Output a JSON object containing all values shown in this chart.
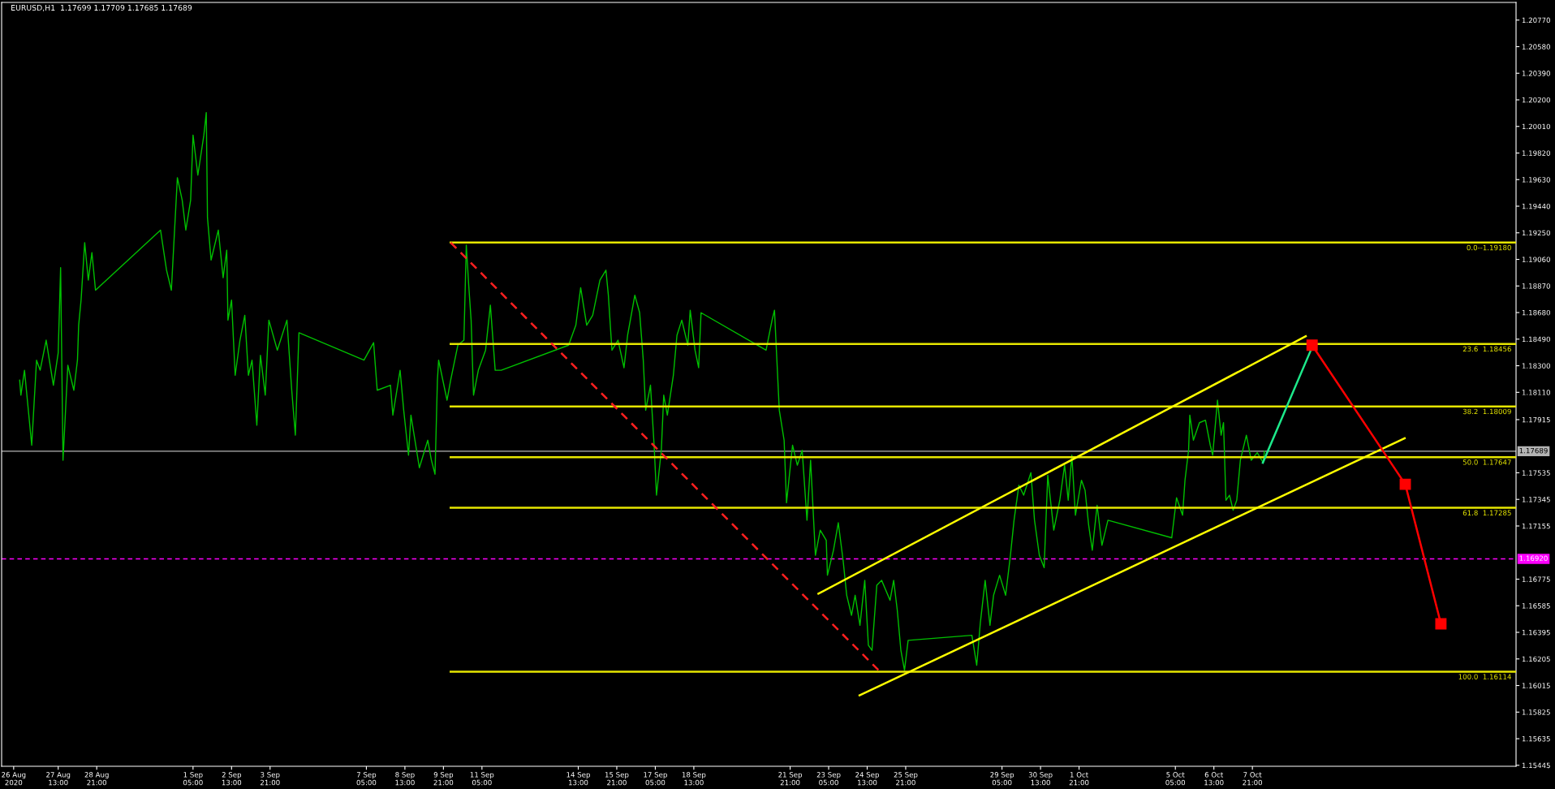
{
  "chart_data": {
    "type": "line",
    "title": "EURUSD,H1  1.17699 1.17709 1.17685 1.17689",
    "xlim": [
      "2020-08-25T14:00",
      "2020-10-17T00:00"
    ],
    "ylim": [
      1.15438,
      1.20896
    ],
    "xticks": [
      {
        "value": "2020-08-26",
        "label": "26 Aug 2020"
      },
      {
        "value": "2020-08-27T13:00",
        "label": "27 Aug 13:00"
      },
      {
        "value": "2020-08-28T21:00",
        "label": "28 Aug 21:00"
      },
      {
        "value": "2020-09-01T05:00",
        "label": "1 Sep 05:00"
      },
      {
        "value": "2020-09-02T13:00",
        "label": "2 Sep 13:00"
      },
      {
        "value": "2020-09-03T21:00",
        "label": "3 Sep 21:00"
      },
      {
        "value": "2020-09-07T05:00",
        "label": "7 Sep 05:00"
      },
      {
        "value": "2020-09-08T13:00",
        "label": "8 Sep 13:00"
      },
      {
        "value": "2020-09-09T21:00",
        "label": "9 Sep 21:00"
      },
      {
        "value": "2020-09-11T05:00",
        "label": "11 Sep 05:00"
      },
      {
        "value": "2020-09-14T13:00",
        "label": "14 Sep 13:00"
      },
      {
        "value": "2020-09-15T21:00",
        "label": "15 Sep 21:00"
      },
      {
        "value": "2020-09-17T05:00",
        "label": "17 Sep 05:00"
      },
      {
        "value": "2020-09-18T13:00",
        "label": "18 Sep 13:00"
      },
      {
        "value": "2020-09-21T21:00",
        "label": "21 Sep 21:00"
      },
      {
        "value": "2020-09-23T05:00",
        "label": "23 Sep 05:00"
      },
      {
        "value": "2020-09-24T13:00",
        "label": "24 Sep 13:00"
      },
      {
        "value": "2020-09-25T21:00",
        "label": "25 Sep 21:00"
      },
      {
        "value": "2020-09-29T05:00",
        "label": "29 Sep 05:00"
      },
      {
        "value": "2020-09-30T13:00",
        "label": "30 Sep 13:00"
      },
      {
        "value": "2020-10-01T21:00",
        "label": "1 Oct 21:00"
      },
      {
        "value": "2020-10-05T05:00",
        "label": "5 Oct 05:00"
      },
      {
        "value": "2020-10-06T13:00",
        "label": "6 Oct 13:00"
      },
      {
        "value": "2020-10-07T21:00",
        "label": "7 Oct 21:00"
      }
    ],
    "yticks": [
      {
        "value": 1.2077,
        "label": "1.20770"
      },
      {
        "value": 1.2058,
        "label": "1.20580"
      },
      {
        "value": 1.2039,
        "label": "1.20390"
      },
      {
        "value": 1.202,
        "label": "1.20200"
      },
      {
        "value": 1.2001,
        "label": "1.20010"
      },
      {
        "value": 1.1982,
        "label": "1.19820"
      },
      {
        "value": 1.1963,
        "label": "1.19630"
      },
      {
        "value": 1.1944,
        "label": "1.19440"
      },
      {
        "value": 1.1925,
        "label": "1.19250"
      },
      {
        "value": 1.1906,
        "label": "1.19060"
      },
      {
        "value": 1.1887,
        "label": "1.18870"
      },
      {
        "value": 1.1868,
        "label": "1.18680"
      },
      {
        "value": 1.1849,
        "label": "1.18490"
      },
      {
        "value": 1.183,
        "label": "1.18300"
      },
      {
        "value": 1.1811,
        "label": "1.18110"
      },
      {
        "value": 1.17915,
        "label": "1.17915"
      },
      {
        "value": 1.17535,
        "label": "1.17535"
      },
      {
        "value": 1.17345,
        "label": "1.17345"
      },
      {
        "value": 1.17155,
        "label": "1.17155"
      },
      {
        "value": 1.16775,
        "label": "1.16775"
      },
      {
        "value": 1.16585,
        "label": "1.16585"
      },
      {
        "value": 1.16395,
        "label": "1.16395"
      },
      {
        "value": 1.16205,
        "label": "1.16205"
      },
      {
        "value": 1.16015,
        "label": "1.16015"
      },
      {
        "value": 1.15825,
        "label": "1.15825"
      },
      {
        "value": 1.15635,
        "label": "1.15635"
      },
      {
        "value": 1.15445,
        "label": "1.15445"
      }
    ],
    "grid": false,
    "ref_lines": [
      {
        "axis": "y",
        "value": 1.17689,
        "label": "1.17689",
        "color": "#b4b4b4",
        "line_style": "solid"
      },
      {
        "axis": "y",
        "value": 1.1692,
        "label": "1.16920",
        "color": "#ff00ff",
        "line_style": "dashed"
      }
    ],
    "series": [
      {
        "color": "#00c000",
        "line_style": "solid",
        "x": [
          "2020-08-26T05:00",
          "2020-08-26T06:00",
          "2020-08-26T09:00",
          "2020-08-26T15:00",
          "2020-08-26T19:00",
          "2020-08-26T22:00",
          "2020-08-27T03:00",
          "2020-08-27T09:00",
          "2020-08-27T13:00",
          "2020-08-27T15:00",
          "2020-08-27T17:00",
          "2020-08-27T21:00",
          "2020-08-28T02:00",
          "2020-08-28T05:00",
          "2020-08-28T06:00",
          "2020-08-28T08:00",
          "2020-08-28T11:00",
          "2020-08-28T14:00",
          "2020-08-28T17:00",
          "2020-08-28T20:00",
          "2020-08-31T02:00",
          "2020-08-31T07:00",
          "2020-08-31T11:00",
          "2020-08-31T13:00",
          "2020-08-31T16:00",
          "2020-08-31T20:00",
          "2020-08-31T23:00",
          "2020-09-01T03:00",
          "2020-09-01T05:00",
          "2020-09-01T09:00",
          "2020-09-01T14:00",
          "2020-09-01T16:00",
          "2020-09-01T17:00",
          "2020-09-01T20:00",
          "2020-09-02T02:00",
          "2020-09-02T06:00",
          "2020-09-02T09:00",
          "2020-09-02T10:00",
          "2020-09-02T13:00",
          "2020-09-02T16:00",
          "2020-09-02T20:00",
          "2020-09-03T00:00",
          "2020-09-03T03:00",
          "2020-09-03T06:00",
          "2020-09-03T10:00",
          "2020-09-03T13:00",
          "2020-09-03T17:00",
          "2020-09-03T20:00",
          "2020-09-04T03:00",
          "2020-09-04T11:00",
          "2020-09-04T15:00",
          "2020-09-04T18:00",
          "2020-09-04T21:00",
          "2020-09-07T03:00",
          "2020-09-07T11:00",
          "2020-09-07T14:00",
          "2020-09-08T01:00",
          "2020-09-08T03:00",
          "2020-09-08T09:00",
          "2020-09-08T12:00",
          "2020-09-08T16:00",
          "2020-09-08T18:00",
          "2020-09-09T01:00",
          "2020-09-09T08:00",
          "2020-09-09T11:00",
          "2020-09-09T14:00",
          "2020-09-09T16:00",
          "2020-09-09T17:00",
          "2020-09-10T00:00",
          "2020-09-10T03:00",
          "2020-09-10T09:00",
          "2020-09-10T14:00",
          "2020-09-10T16:00",
          "2020-09-10T18:00",
          "2020-09-10T20:00",
          "2020-09-10T22:00",
          "2020-09-11T02:00",
          "2020-09-11T08:00",
          "2020-09-11T12:00",
          "2020-09-11T16:00",
          "2020-09-11T21:00",
          "2020-09-14T05:00",
          "2020-09-14T11:00",
          "2020-09-14T15:00",
          "2020-09-14T20:00",
          "2020-09-15T01:00",
          "2020-09-15T07:00",
          "2020-09-15T12:00",
          "2020-09-15T14:00",
          "2020-09-15T17:00",
          "2020-09-15T22:00",
          "2020-09-16T03:00",
          "2020-09-16T06:00",
          "2020-09-16T12:00",
          "2020-09-16T16:00",
          "2020-09-16T19:00",
          "2020-09-16T21:00",
          "2020-09-17T01:00",
          "2020-09-17T04:00",
          "2020-09-17T06:00",
          "2020-09-17T10:00",
          "2020-09-17T12:00",
          "2020-09-17T15:00",
          "2020-09-17T20:00",
          "2020-09-17T23:00",
          "2020-09-18T03:00",
          "2020-09-18T08:00",
          "2020-09-18T10:00",
          "2020-09-18T14:00",
          "2020-09-18T17:00",
          "2020-09-18T19:00",
          "2020-09-21T01:00",
          "2020-09-21T06:00",
          "2020-09-21T08:00",
          "2020-09-21T10:00",
          "2020-09-21T12:00",
          "2020-09-21T16:00",
          "2020-09-21T18:00",
          "2020-09-21T23:00",
          "2020-09-22T03:00",
          "2020-09-22T07:00",
          "2020-09-22T11:00",
          "2020-09-22T14:00",
          "2020-09-22T18:00",
          "2020-09-22T22:00",
          "2020-09-23T03:00",
          "2020-09-23T04:00",
          "2020-09-23T09:00",
          "2020-09-23T13:00",
          "2020-09-23T17:00",
          "2020-09-23T20:00",
          "2020-09-24T00:00",
          "2020-09-24T03:00",
          "2020-09-24T07:00",
          "2020-09-24T11:00",
          "2020-09-24T14:00",
          "2020-09-24T17:00",
          "2020-09-24T21:00",
          "2020-09-25T01:00",
          "2020-09-25T08:00",
          "2020-09-25T11:00",
          "2020-09-25T14:00",
          "2020-09-25T17:00",
          "2020-09-25T20:00",
          "2020-09-25T23:00",
          "2020-09-28T04:00",
          "2020-09-28T08:00",
          "2020-09-28T11:00",
          "2020-09-28T15:00",
          "2020-09-28T19:00",
          "2020-09-28T22:00",
          "2020-09-29T03:00",
          "2020-09-29T08:00",
          "2020-09-29T12:00",
          "2020-09-29T15:00",
          "2020-09-29T19:00",
          "2020-09-29T23:00",
          "2020-09-30T05:00",
          "2020-09-30T08:00",
          "2020-09-30T12:00",
          "2020-09-30T16:00",
          "2020-09-30T19:00",
          "2020-10-01T00:00",
          "2020-10-01T05:00",
          "2020-10-01T09:00",
          "2020-10-01T12:00",
          "2020-10-01T15:00",
          "2020-10-01T18:00",
          "2020-10-01T23:00",
          "2020-10-02T02:00",
          "2020-10-02T05:00",
          "2020-10-02T08:00",
          "2020-10-02T12:00",
          "2020-10-02T16:00",
          "2020-10-02T21:00",
          "2020-10-05T02:00",
          "2020-10-05T06:00",
          "2020-10-05T11:00",
          "2020-10-05T13:00",
          "2020-10-05T16:00",
          "2020-10-05T17:00",
          "2020-10-05T20:00",
          "2020-10-06T01:00",
          "2020-10-06T06:00",
          "2020-10-06T10:00",
          "2020-10-06T12:00",
          "2020-10-06T16:00",
          "2020-10-06T19:00",
          "2020-10-06T21:00",
          "2020-10-06T23:00",
          "2020-10-07T02:00",
          "2020-10-07T05:00",
          "2020-10-07T08:00",
          "2020-10-07T11:00",
          "2020-10-07T16:00",
          "2020-10-07T20:00",
          "2020-10-08T01:00",
          "2020-10-08T06:00",
          "2020-10-08T07:00"
        ],
        "values": [
          1.18197,
          1.1809,
          1.18268,
          1.17732,
          1.1834,
          1.18268,
          1.18483,
          1.18161,
          1.18393,
          1.19001,
          1.17625,
          1.18304,
          1.18125,
          1.1834,
          1.1859,
          1.18769,
          1.1918,
          1.18912,
          1.19108,
          1.1884,
          1.19269,
          1.18983,
          1.1884,
          1.19162,
          1.19644,
          1.19483,
          1.19269,
          1.19483,
          1.19948,
          1.19662,
          1.19948,
          1.20109,
          1.19358,
          1.19055,
          1.19269,
          1.18929,
          1.19126,
          1.18626,
          1.18769,
          1.18232,
          1.18483,
          1.18661,
          1.18232,
          1.1834,
          1.17875,
          1.18375,
          1.1809,
          1.18626,
          1.18411,
          1.18626,
          1.18125,
          1.17804,
          1.18536,
          1.1834,
          1.18465,
          1.18125,
          1.18161,
          1.17947,
          1.18268,
          1.17982,
          1.17661,
          1.17947,
          1.17571,
          1.17768,
          1.17625,
          1.17525,
          1.18197,
          1.1834,
          1.18054,
          1.18197,
          1.18447,
          1.18483,
          1.19162,
          1.18876,
          1.18626,
          1.1809,
          1.18268,
          1.18411,
          1.18733,
          1.18268,
          1.18268,
          1.18447,
          1.1859,
          1.18858,
          1.1859,
          1.18661,
          1.18912,
          1.18983,
          1.18804,
          1.18411,
          1.18483,
          1.18286,
          1.18518,
          1.18804,
          1.18679,
          1.1834,
          1.17982,
          1.18161,
          1.17732,
          1.17375,
          1.17696,
          1.1809,
          1.17947,
          1.18232,
          1.18518,
          1.18626,
          1.18447,
          1.18697,
          1.18411,
          1.18286,
          1.18679,
          1.18411,
          1.18626,
          1.18697,
          1.1834,
          1.17982,
          1.17768,
          1.17321,
          1.17732,
          1.17589,
          1.17696,
          1.17196,
          1.17625,
          1.16946,
          1.17125,
          1.17053,
          1.16803,
          1.16982,
          1.17178,
          1.1691,
          1.1666,
          1.16517,
          1.1666,
          1.16445,
          1.16767,
          1.16303,
          1.16267,
          1.16731,
          1.16767,
          1.16624,
          1.16767,
          1.16553,
          1.16267,
          1.16124,
          1.16338,
          1.16374,
          1.1616,
          1.16463,
          1.16767,
          1.16445,
          1.1666,
          1.16803,
          1.1666,
          1.16946,
          1.17196,
          1.17446,
          1.17375,
          1.17536,
          1.17196,
          1.16946,
          1.16857,
          1.17518,
          1.17125,
          1.17339,
          1.17589,
          1.17339,
          1.17661,
          1.17232,
          1.17482,
          1.1741,
          1.1716,
          1.16982,
          1.17303,
          1.17017,
          1.17196,
          1.17071,
          1.17357,
          1.17232,
          1.17482,
          1.17697,
          1.17947,
          1.17768,
          1.17893,
          1.17911,
          1.17732,
          1.17661,
          1.18054,
          1.17804,
          1.17893,
          1.17339,
          1.17375,
          1.17268,
          1.17339,
          1.17625,
          1.17804,
          1.17625,
          1.17679,
          1.17607,
          1.17689
        ]
      },
      {
        "name": "0.0--1.19180",
        "color": "#e6e600",
        "line_style": "solid",
        "x": [
          "2020-09-10T03:00",
          "2020-10-17T00:00"
        ],
        "values": [
          1.1918,
          1.1918
        ]
      },
      {
        "name": "23.6  1.18456",
        "color": "#e6e600",
        "line_style": "solid",
        "x": [
          "2020-09-10T03:00",
          "2020-10-17T00:00"
        ],
        "values": [
          1.18456,
          1.18456
        ]
      },
      {
        "name": "38.2  1.18009",
        "color": "#e6e600",
        "line_style": "solid",
        "x": [
          "2020-09-10T03:00",
          "2020-10-17T00:00"
        ],
        "values": [
          1.18009,
          1.18009
        ]
      },
      {
        "name": "50.0  1.17647",
        "color": "#e6e600",
        "line_style": "solid",
        "x": [
          "2020-09-10T03:00",
          "2020-10-17T00:00"
        ],
        "values": [
          1.17647,
          1.17647
        ]
      },
      {
        "name": "61.8  1.17285",
        "color": "#e6e600",
        "line_style": "solid",
        "x": [
          "2020-09-10T03:00",
          "2020-10-17T00:00"
        ],
        "values": [
          1.17285,
          1.17285
        ]
      },
      {
        "name": "100.0  1.16114",
        "color": "#e6e600",
        "line_style": "solid",
        "x": [
          "2020-09-10T03:00",
          "2020-10-17T00:00"
        ],
        "values": [
          1.16114,
          1.16114
        ]
      },
      {
        "color": "#ff2020",
        "line_style": "dashed",
        "x": [
          "2020-09-10T03:00",
          "2020-09-24T23:40"
        ],
        "values": [
          1.1918,
          1.16114
        ]
      },
      {
        "color": "#ffff00",
        "line_style": "solid",
        "x": [
          "2020-09-22T20:30",
          "2020-10-09T17:20"
        ],
        "values": [
          1.16671,
          1.18511
        ]
      },
      {
        "color": "#ffff00",
        "line_style": "solid",
        "x": [
          "2020-09-24T06:40",
          "2020-10-13T03:30"
        ],
        "values": [
          1.15945,
          1.17782
        ]
      },
      {
        "color": "#1de98b",
        "line_style": "solid",
        "x": [
          "2020-10-08T05:40",
          "2020-10-09T23:40"
        ],
        "values": [
          1.17607,
          1.18454
        ]
      },
      {
        "color": "#ff0000",
        "line_style": "solid",
        "marker": "square",
        "x": [
          "2020-10-09T22:35",
          "2020-10-13T04:00",
          "2020-10-14T09:35"
        ],
        "values": [
          1.18447,
          1.17453,
          1.16456
        ]
      }
    ]
  }
}
